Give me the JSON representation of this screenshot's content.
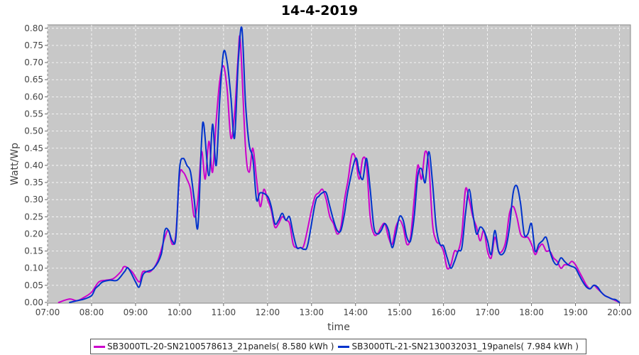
{
  "chart_data": {
    "type": "line",
    "title": "14-4-2019",
    "xlabel": "time",
    "ylabel": "Watt/Wp",
    "xlim": [
      "07:00",
      "20:15"
    ],
    "ylim": [
      0,
      0.81
    ],
    "yticks": [
      "0.00",
      "0.05",
      "0.10",
      "0.15",
      "0.20",
      "0.25",
      "0.30",
      "0.35",
      "0.40",
      "0.45",
      "0.50",
      "0.55",
      "0.60",
      "0.65",
      "0.70",
      "0.75",
      "0.80"
    ],
    "xticks": [
      "07:00",
      "08:00",
      "09:00",
      "10:00",
      "11:00",
      "12:00",
      "13:00",
      "14:00",
      "15:00",
      "16:00",
      "17:00",
      "18:00",
      "19:00",
      "20:00"
    ],
    "grid": true,
    "legend_placement": "bottom",
    "background": "#c8c8c8",
    "series": [
      {
        "name": "SB3000TL-20-SN2100578613_21panels( 8.580 kWh )",
        "color": "#cc00cc",
        "points": [
          [
            "07:15",
            0
          ],
          [
            "07:30",
            0.01
          ],
          [
            "07:40",
            0.005
          ],
          [
            "07:50",
            0.015
          ],
          [
            "08:00",
            0.03
          ],
          [
            "08:10",
            0.06
          ],
          [
            "08:20",
            0.065
          ],
          [
            "08:30",
            0.07
          ],
          [
            "08:40",
            0.09
          ],
          [
            "08:45",
            0.105
          ],
          [
            "08:55",
            0.09
          ],
          [
            "09:05",
            0.06
          ],
          [
            "09:10",
            0.09
          ],
          [
            "09:20",
            0.09
          ],
          [
            "09:30",
            0.12
          ],
          [
            "09:40",
            0.19
          ],
          [
            "09:45",
            0.21
          ],
          [
            "09:50",
            0.17
          ],
          [
            "09:55",
            0.2
          ],
          [
            "10:00",
            0.37
          ],
          [
            "10:05",
            0.38
          ],
          [
            "10:10",
            0.36
          ],
          [
            "10:15",
            0.33
          ],
          [
            "10:20",
            0.25
          ],
          [
            "10:25",
            0.3
          ],
          [
            "10:30",
            0.44
          ],
          [
            "10:35",
            0.36
          ],
          [
            "10:40",
            0.47
          ],
          [
            "10:45",
            0.38
          ],
          [
            "10:50",
            0.53
          ],
          [
            "10:55",
            0.65
          ],
          [
            "11:00",
            0.69
          ],
          [
            "11:05",
            0.62
          ],
          [
            "11:10",
            0.48
          ],
          [
            "11:15",
            0.55
          ],
          [
            "11:20",
            0.72
          ],
          [
            "11:23",
            0.76
          ],
          [
            "11:30",
            0.45
          ],
          [
            "11:35",
            0.38
          ],
          [
            "11:40",
            0.45
          ],
          [
            "11:45",
            0.36
          ],
          [
            "11:50",
            0.28
          ],
          [
            "11:55",
            0.33
          ],
          [
            "12:00",
            0.3
          ],
          [
            "12:05",
            0.27
          ],
          [
            "12:10",
            0.22
          ],
          [
            "12:15",
            0.23
          ],
          [
            "12:20",
            0.25
          ],
          [
            "12:25",
            0.24
          ],
          [
            "12:30",
            0.23
          ],
          [
            "12:35",
            0.17
          ],
          [
            "12:40",
            0.16
          ],
          [
            "12:45",
            0.16
          ],
          [
            "12:50",
            0.17
          ],
          [
            "13:00",
            0.27
          ],
          [
            "13:05",
            0.31
          ],
          [
            "13:10",
            0.32
          ],
          [
            "13:15",
            0.33
          ],
          [
            "13:20",
            0.3
          ],
          [
            "13:25",
            0.25
          ],
          [
            "13:30",
            0.23
          ],
          [
            "13:35",
            0.2
          ],
          [
            "13:40",
            0.22
          ],
          [
            "13:45",
            0.3
          ],
          [
            "13:50",
            0.36
          ],
          [
            "13:55",
            0.43
          ],
          [
            "14:00",
            0.42
          ],
          [
            "14:05",
            0.36
          ],
          [
            "14:10",
            0.42
          ],
          [
            "14:15",
            0.4
          ],
          [
            "14:20",
            0.25
          ],
          [
            "14:25",
            0.2
          ],
          [
            "14:30",
            0.2
          ],
          [
            "14:35",
            0.22
          ],
          [
            "14:40",
            0.23
          ],
          [
            "14:45",
            0.19
          ],
          [
            "14:50",
            0.17
          ],
          [
            "14:55",
            0.22
          ],
          [
            "15:00",
            0.24
          ],
          [
            "15:05",
            0.22
          ],
          [
            "15:10",
            0.17
          ],
          [
            "15:15",
            0.19
          ],
          [
            "15:20",
            0.3
          ],
          [
            "15:25",
            0.4
          ],
          [
            "15:30",
            0.36
          ],
          [
            "15:35",
            0.44
          ],
          [
            "15:40",
            0.4
          ],
          [
            "15:45",
            0.23
          ],
          [
            "15:50",
            0.18
          ],
          [
            "15:55",
            0.17
          ],
          [
            "16:00",
            0.15
          ],
          [
            "16:05",
            0.1
          ],
          [
            "16:10",
            0.11
          ],
          [
            "16:15",
            0.15
          ],
          [
            "16:20",
            0.15
          ],
          [
            "16:25",
            0.2
          ],
          [
            "16:30",
            0.33
          ],
          [
            "16:35",
            0.3
          ],
          [
            "16:40",
            0.25
          ],
          [
            "16:45",
            0.22
          ],
          [
            "16:50",
            0.18
          ],
          [
            "16:55",
            0.21
          ],
          [
            "17:00",
            0.15
          ],
          [
            "17:05",
            0.13
          ],
          [
            "17:10",
            0.19
          ],
          [
            "17:15",
            0.15
          ],
          [
            "17:20",
            0.15
          ],
          [
            "17:25",
            0.18
          ],
          [
            "17:30",
            0.26
          ],
          [
            "17:35",
            0.28
          ],
          [
            "17:40",
            0.25
          ],
          [
            "17:45",
            0.2
          ],
          [
            "17:50",
            0.19
          ],
          [
            "17:55",
            0.19
          ],
          [
            "18:00",
            0.17
          ],
          [
            "18:05",
            0.14
          ],
          [
            "18:10",
            0.16
          ],
          [
            "18:15",
            0.17
          ],
          [
            "18:20",
            0.15
          ],
          [
            "18:25",
            0.15
          ],
          [
            "18:30",
            0.13
          ],
          [
            "18:35",
            0.12
          ],
          [
            "18:40",
            0.1
          ],
          [
            "18:45",
            0.11
          ],
          [
            "18:50",
            0.11
          ],
          [
            "18:55",
            0.12
          ],
          [
            "19:00",
            0.11
          ],
          [
            "19:05",
            0.09
          ],
          [
            "19:10",
            0.07
          ],
          [
            "19:15",
            0.05
          ],
          [
            "19:20",
            0.04
          ],
          [
            "19:25",
            0.05
          ],
          [
            "19:30",
            0.04
          ],
          [
            "19:35",
            0.03
          ],
          [
            "19:40",
            0.02
          ],
          [
            "19:45",
            0.015
          ],
          [
            "19:50",
            0.01
          ],
          [
            "19:55",
            0.005
          ],
          [
            "20:00",
            0
          ]
        ]
      },
      {
        "name": "SB3000TL-21-SN2130032031_19panels( 7.984 kWh )",
        "color": "#0033cc",
        "points": [
          [
            "07:30",
            0
          ],
          [
            "07:40",
            0.005
          ],
          [
            "07:50",
            0.01
          ],
          [
            "08:00",
            0.02
          ],
          [
            "08:05",
            0.04
          ],
          [
            "08:10",
            0.05
          ],
          [
            "08:15",
            0.06
          ],
          [
            "08:25",
            0.065
          ],
          [
            "08:35",
            0.065
          ],
          [
            "08:45",
            0.09
          ],
          [
            "08:50",
            0.1
          ],
          [
            "09:00",
            0.06
          ],
          [
            "09:05",
            0.045
          ],
          [
            "09:10",
            0.08
          ],
          [
            "09:15",
            0.09
          ],
          [
            "09:25",
            0.1
          ],
          [
            "09:35",
            0.14
          ],
          [
            "09:40",
            0.21
          ],
          [
            "09:45",
            0.21
          ],
          [
            "09:50",
            0.18
          ],
          [
            "09:55",
            0.19
          ],
          [
            "10:00",
            0.39
          ],
          [
            "10:05",
            0.42
          ],
          [
            "10:10",
            0.4
          ],
          [
            "10:15",
            0.38
          ],
          [
            "10:20",
            0.3
          ],
          [
            "10:25",
            0.22
          ],
          [
            "10:30",
            0.47
          ],
          [
            "10:33",
            0.52
          ],
          [
            "10:40",
            0.37
          ],
          [
            "10:45",
            0.52
          ],
          [
            "10:50",
            0.4
          ],
          [
            "10:55",
            0.6
          ],
          [
            "11:00",
            0.73
          ],
          [
            "11:05",
            0.7
          ],
          [
            "11:10",
            0.6
          ],
          [
            "11:15",
            0.48
          ],
          [
            "11:20",
            0.7
          ],
          [
            "11:25",
            0.8
          ],
          [
            "11:30",
            0.58
          ],
          [
            "11:35",
            0.46
          ],
          [
            "11:40",
            0.42
          ],
          [
            "11:45",
            0.3
          ],
          [
            "11:50",
            0.32
          ],
          [
            "12:00",
            0.31
          ],
          [
            "12:05",
            0.28
          ],
          [
            "12:10",
            0.23
          ],
          [
            "12:15",
            0.24
          ],
          [
            "12:20",
            0.26
          ],
          [
            "12:25",
            0.24
          ],
          [
            "12:30",
            0.25
          ],
          [
            "12:35",
            0.2
          ],
          [
            "12:40",
            0.16
          ],
          [
            "12:45",
            0.16
          ],
          [
            "12:50",
            0.155
          ],
          [
            "12:55",
            0.17
          ],
          [
            "13:05",
            0.29
          ],
          [
            "13:10",
            0.31
          ],
          [
            "13:15",
            0.32
          ],
          [
            "13:20",
            0.32
          ],
          [
            "13:25",
            0.28
          ],
          [
            "13:30",
            0.24
          ],
          [
            "13:35",
            0.21
          ],
          [
            "13:40",
            0.21
          ],
          [
            "13:45",
            0.26
          ],
          [
            "13:50",
            0.33
          ],
          [
            "14:00",
            0.42
          ],
          [
            "14:05",
            0.38
          ],
          [
            "14:10",
            0.36
          ],
          [
            "14:15",
            0.42
          ],
          [
            "14:20",
            0.33
          ],
          [
            "14:25",
            0.22
          ],
          [
            "14:30",
            0.2
          ],
          [
            "14:35",
            0.21
          ],
          [
            "14:40",
            0.23
          ],
          [
            "14:45",
            0.21
          ],
          [
            "14:50",
            0.16
          ],
          [
            "14:55",
            0.2
          ],
          [
            "15:00",
            0.25
          ],
          [
            "15:05",
            0.24
          ],
          [
            "15:10",
            0.19
          ],
          [
            "15:15",
            0.18
          ],
          [
            "15:20",
            0.25
          ],
          [
            "15:25",
            0.37
          ],
          [
            "15:30",
            0.39
          ],
          [
            "15:35",
            0.35
          ],
          [
            "15:40",
            0.44
          ],
          [
            "15:45",
            0.35
          ],
          [
            "15:50",
            0.22
          ],
          [
            "15:55",
            0.17
          ],
          [
            "16:00",
            0.165
          ],
          [
            "16:05",
            0.13
          ],
          [
            "16:10",
            0.1
          ],
          [
            "16:15",
            0.12
          ],
          [
            "16:20",
            0.15
          ],
          [
            "16:25",
            0.16
          ],
          [
            "16:30",
            0.26
          ],
          [
            "16:35",
            0.33
          ],
          [
            "16:40",
            0.26
          ],
          [
            "16:45",
            0.2
          ],
          [
            "16:50",
            0.22
          ],
          [
            "16:55",
            0.21
          ],
          [
            "17:00",
            0.18
          ],
          [
            "17:05",
            0.14
          ],
          [
            "17:10",
            0.21
          ],
          [
            "17:15",
            0.15
          ],
          [
            "17:20",
            0.14
          ],
          [
            "17:25",
            0.16
          ],
          [
            "17:30",
            0.22
          ],
          [
            "17:35",
            0.32
          ],
          [
            "17:40",
            0.34
          ],
          [
            "17:45",
            0.29
          ],
          [
            "17:50",
            0.2
          ],
          [
            "17:55",
            0.2
          ],
          [
            "18:00",
            0.23
          ],
          [
            "18:05",
            0.15
          ],
          [
            "18:10",
            0.17
          ],
          [
            "18:15",
            0.18
          ],
          [
            "18:20",
            0.19
          ],
          [
            "18:25",
            0.15
          ],
          [
            "18:30",
            0.12
          ],
          [
            "18:35",
            0.11
          ],
          [
            "18:40",
            0.13
          ],
          [
            "18:45",
            0.12
          ],
          [
            "18:50",
            0.11
          ],
          [
            "18:55",
            0.105
          ],
          [
            "19:00",
            0.1
          ],
          [
            "19:05",
            0.08
          ],
          [
            "19:10",
            0.06
          ],
          [
            "19:15",
            0.045
          ],
          [
            "19:20",
            0.04
          ],
          [
            "19:25",
            0.05
          ],
          [
            "19:30",
            0.045
          ],
          [
            "19:35",
            0.03
          ],
          [
            "19:40",
            0.02
          ],
          [
            "19:45",
            0.015
          ],
          [
            "19:50",
            0.01
          ],
          [
            "19:55",
            0.008
          ],
          [
            "20:00",
            0
          ]
        ]
      }
    ]
  }
}
